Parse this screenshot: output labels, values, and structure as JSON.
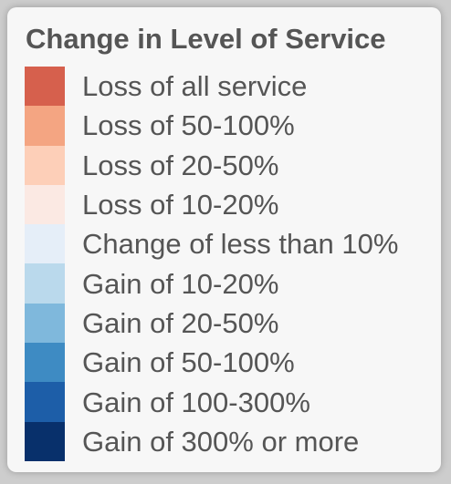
{
  "legend": {
    "title": "Change in Level of Service",
    "items": [
      {
        "label": "Loss of all service",
        "color": "#d6604d"
      },
      {
        "label": "Loss of 50-100%",
        "color": "#f4a582"
      },
      {
        "label": "Loss of 20-50%",
        "color": "#fdcfb8"
      },
      {
        "label": "Loss of 10-20%",
        "color": "#fbe9e3"
      },
      {
        "label": "Change of less than 10%",
        "color": "#e5eef8"
      },
      {
        "label": "Gain of 10-20%",
        "color": "#bad9ec"
      },
      {
        "label": "Gain of 20-50%",
        "color": "#7fb8dc"
      },
      {
        "label": "Gain of 50-100%",
        "color": "#3e8bc3"
      },
      {
        "label": "Gain of 100-300%",
        "color": "#1d5ea8"
      },
      {
        "label": "Gain of 300% or more",
        "color": "#08306b"
      }
    ]
  }
}
